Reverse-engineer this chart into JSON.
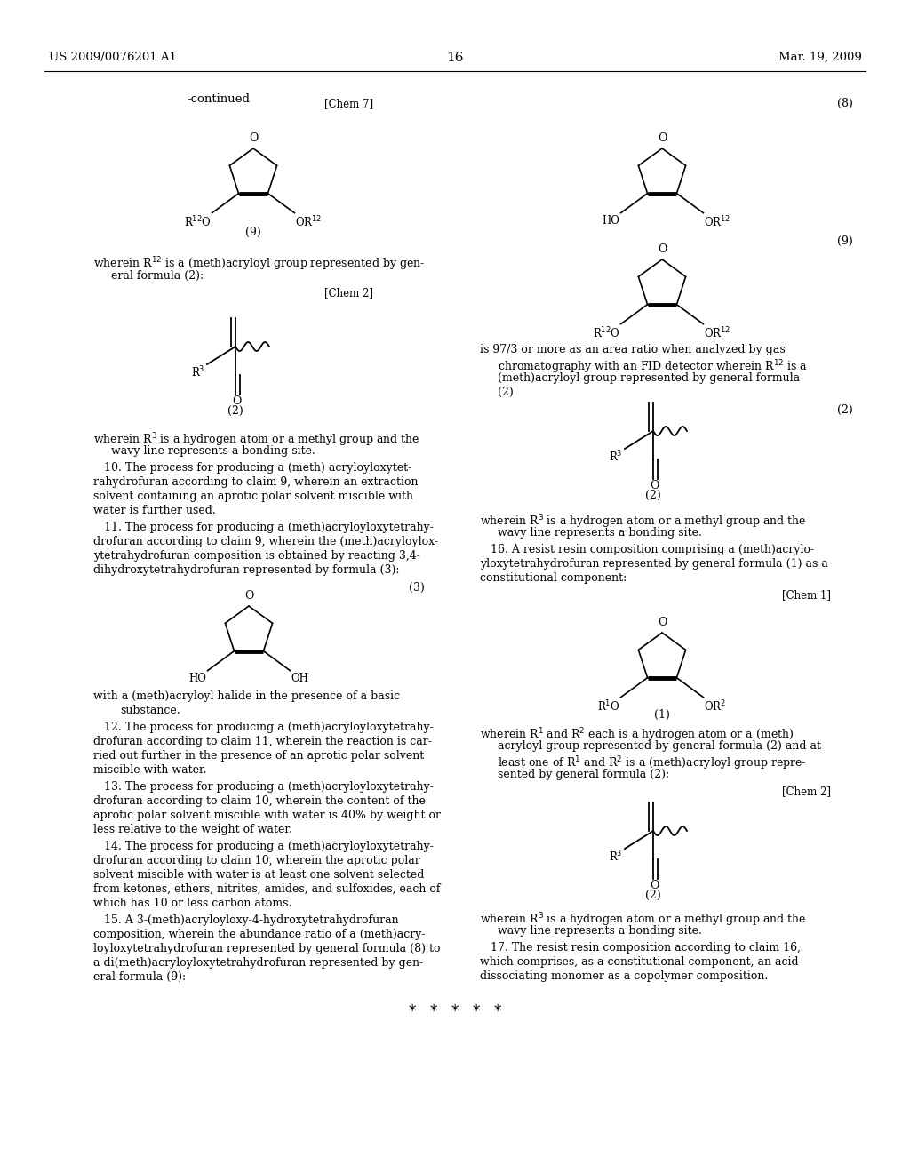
{
  "page_number": "16",
  "patent_number": "US 2009/0076201 A1",
  "patent_date": "Mar. 19, 2009",
  "background_color": "#ffffff",
  "text_color": "#000000",
  "figsize": [
    10.24,
    13.2
  ],
  "dpi": 100
}
